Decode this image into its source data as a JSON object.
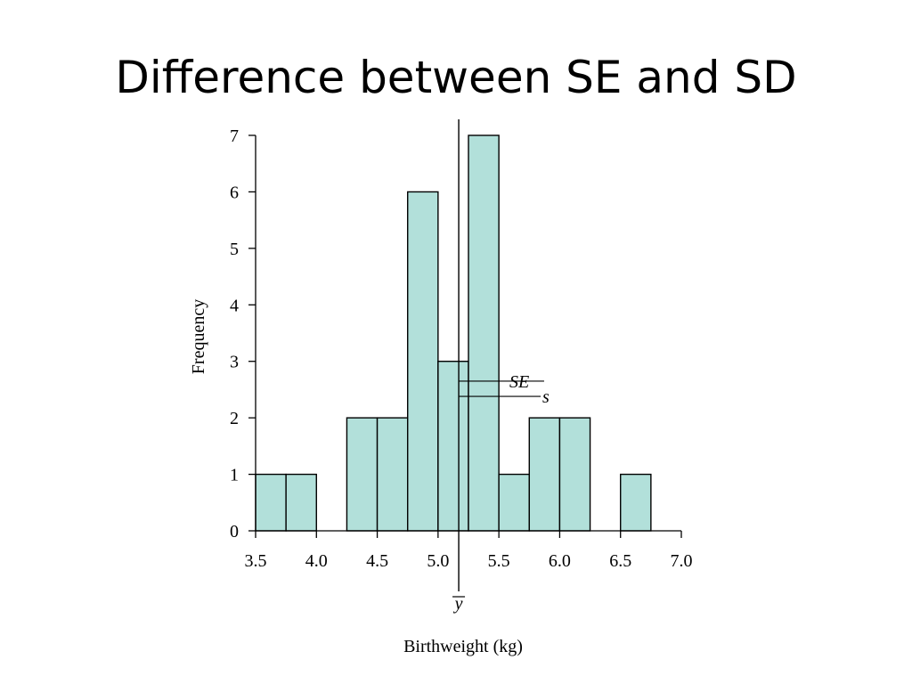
{
  "slide": {
    "title": "Difference between SE and SD"
  },
  "chart_data": {
    "type": "bar",
    "title": "",
    "xlabel": "Birthweight (kg)",
    "ylabel": "Frequency",
    "xlim": [
      3.5,
      7.0
    ],
    "ylim": [
      0,
      7
    ],
    "x_ticks": [
      "3.5",
      "4.0",
      "4.5",
      "5.0",
      "5.5",
      "6.0",
      "6.5",
      "7.0"
    ],
    "y_ticks": [
      "0",
      "1",
      "2",
      "3",
      "4",
      "5",
      "6",
      "7"
    ],
    "bin_width": 0.25,
    "bins": [
      {
        "start": 3.5,
        "end": 3.75,
        "count": 1
      },
      {
        "start": 3.75,
        "end": 4.0,
        "count": 1
      },
      {
        "start": 4.0,
        "end": 4.25,
        "count": 0
      },
      {
        "start": 4.25,
        "end": 4.5,
        "count": 2
      },
      {
        "start": 4.5,
        "end": 4.75,
        "count": 2
      },
      {
        "start": 4.75,
        "end": 5.0,
        "count": 6
      },
      {
        "start": 5.0,
        "end": 5.25,
        "count": 3
      },
      {
        "start": 5.25,
        "end": 5.5,
        "count": 7
      },
      {
        "start": 5.5,
        "end": 5.75,
        "count": 1
      },
      {
        "start": 5.75,
        "end": 6.0,
        "count": 2
      },
      {
        "start": 6.0,
        "end": 6.25,
        "count": 2
      },
      {
        "start": 6.25,
        "end": 6.5,
        "count": 0
      },
      {
        "start": 6.5,
        "end": 6.75,
        "count": 1
      },
      {
        "start": 6.75,
        "end": 7.0,
        "count": 0
      }
    ],
    "mean": {
      "value": 5.17,
      "label": "y"
    },
    "se": {
      "value": 0.18,
      "label": "SE",
      "y": 2.65
    },
    "sd": {
      "value": 0.66,
      "label": "s",
      "y": 2.38
    },
    "bar_color": "#b2e0da",
    "bar_stroke": "#000000",
    "grid": false,
    "legend": "none"
  }
}
